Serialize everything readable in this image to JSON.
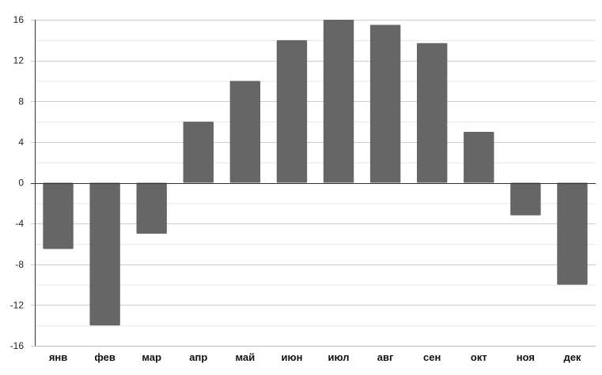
{
  "chart_data": {
    "type": "bar",
    "title": "",
    "xlabel": "",
    "ylabel": "",
    "categories": [
      "янв",
      "фев",
      "мар",
      "апр",
      "май",
      "июн",
      "июл",
      "авг",
      "сен",
      "окт",
      "ноя",
      "дек"
    ],
    "values": [
      -6.5,
      -14,
      -5,
      6,
      10,
      14,
      16,
      15.5,
      13.7,
      5,
      -3.2,
      -10
    ],
    "ylim": [
      -16,
      16
    ],
    "yticks": [
      16,
      12,
      8,
      4,
      0,
      -4,
      -8,
      -12,
      -16
    ],
    "yticks_text": [
      "16",
      "12",
      "8",
      "4",
      "0",
      "-4",
      "-8",
      "-12",
      "-16"
    ],
    "grid": true,
    "bar_color": "#666666",
    "grid_color": "#cccccc",
    "minor_grid_color": "#e6e6e6",
    "legend": "none"
  }
}
